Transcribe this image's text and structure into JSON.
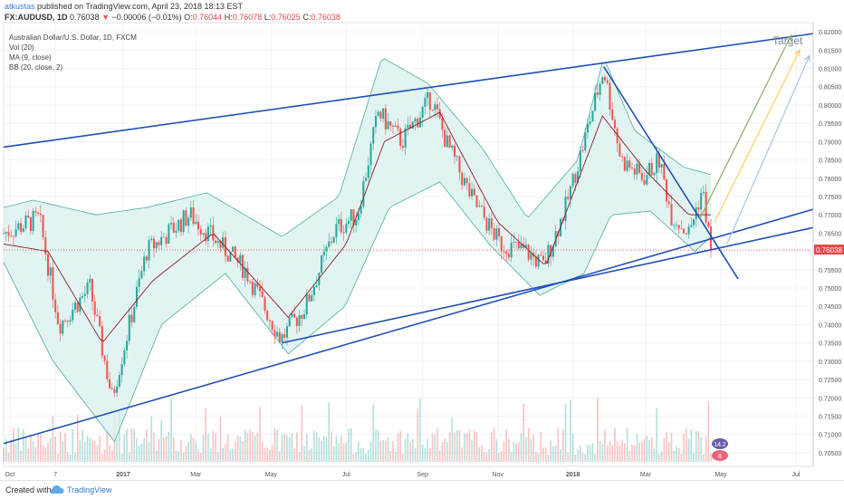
{
  "header": {
    "author": "atkustas",
    "published": "published on TradingView.com, April 23, 2018 18:13 EST",
    "symbol": "FX:AUDUSD, 1D",
    "last": "0.76038",
    "change_arrow": "▼",
    "change": "−0.00006 (−0.01%)",
    "open_label": "O:",
    "open": "0.76044",
    "high_label": "H:",
    "high": "0.76078",
    "low_label": "L:",
    "low": "0.76025",
    "close_label": "C:",
    "close": "0.76038"
  },
  "legend": {
    "title": "Australian Dollar/U.S. Dollar, 1D, FXCM",
    "vol": "Vol (20)",
    "ma": "MA (9, close)",
    "bb": "BB (20, close, 2)"
  },
  "colors": {
    "up": "#26a69a",
    "down": "#ef5350",
    "ma": "#8b1a2b",
    "bb": "#4caf9b",
    "bb_fill": "#d8f0ee",
    "trend": "#1f4fb4",
    "price_line": "#e5474a",
    "arrow_green": "#8bb05a",
    "arrow_yellow": "#f5d060",
    "arrow_blue": "#a9c4e0",
    "target_text": "#7b8a99"
  },
  "annotations": {
    "target": "Target"
  },
  "footer": {
    "created": "Created with",
    "brand": "TradingView",
    "brand_icon": "tradingview-cloud-icon"
  },
  "volume_labels": {
    "top": "14.2",
    "bottom": "8"
  },
  "chart_data": {
    "type": "candlestick",
    "title": "Australian Dollar/U.S. Dollar, 1D, FXCM",
    "x_ticks": [
      "Oct",
      "7",
      "2017",
      "Mar",
      "May",
      "Jul",
      "Sep",
      "Nov",
      "2018",
      "Mar",
      "May",
      "Jul"
    ],
    "y_ticks": [
      "0.82000",
      "0.81500",
      "0.81000",
      "0.80500",
      "0.80000",
      "0.79500",
      "0.79000",
      "0.78500",
      "0.78000",
      "0.77500",
      "0.77000",
      "0.76500",
      "0.76000",
      "0.75500",
      "0.75000",
      "0.74500",
      "0.74000",
      "0.73500",
      "0.73000",
      "0.72500",
      "0.72000",
      "0.71500",
      "0.71000",
      "0.70500"
    ],
    "ylim": [
      0.7025,
      0.8225
    ],
    "last_price": 0.76038,
    "last_price_label": "0.76038",
    "x_start": "2016-09-26",
    "x_end": "2018-07-15",
    "series": [
      {
        "name": "Price",
        "x": [
          "2016-09-26",
          "2016-10-25",
          "2016-11-10",
          "2016-12-05",
          "2016-12-23",
          "2017-01-20",
          "2017-02-24",
          "2017-03-20",
          "2017-04-10",
          "2017-05-09",
          "2017-05-29",
          "2017-06-22",
          "2017-07-10",
          "2017-07-27",
          "2017-08-15",
          "2017-09-08",
          "2017-09-20",
          "2017-10-10",
          "2017-11-03",
          "2017-11-24",
          "2017-12-08",
          "2017-12-26",
          "2018-01-10",
          "2018-01-26",
          "2018-02-09",
          "2018-02-27",
          "2018-03-12",
          "2018-03-22",
          "2018-04-05",
          "2018-04-16",
          "2018-04-23"
        ],
        "values": [
          0.765,
          0.769,
          0.74,
          0.75,
          0.72,
          0.76,
          0.77,
          0.762,
          0.755,
          0.736,
          0.745,
          0.766,
          0.77,
          0.798,
          0.79,
          0.802,
          0.79,
          0.775,
          0.762,
          0.76,
          0.756,
          0.772,
          0.79,
          0.81,
          0.785,
          0.78,
          0.785,
          0.77,
          0.765,
          0.777,
          0.7604
        ]
      },
      {
        "name": "MA (9, close)",
        "x": [
          "2016-09-26",
          "2016-11-01",
          "2016-12-15",
          "2017-01-25",
          "2017-03-15",
          "2017-05-15",
          "2017-07-01",
          "2017-08-01",
          "2017-09-15",
          "2017-11-01",
          "2017-12-10",
          "2018-01-25",
          "2018-03-01",
          "2018-04-05",
          "2018-04-23"
        ],
        "values": [
          0.762,
          0.76,
          0.735,
          0.752,
          0.765,
          0.742,
          0.762,
          0.79,
          0.798,
          0.768,
          0.756,
          0.797,
          0.782,
          0.77,
          0.77
        ]
      },
      {
        "name": "BB upper",
        "x": [
          "2016-09-26",
          "2016-10-20",
          "2016-12-10",
          "2017-01-20",
          "2017-03-10",
          "2017-05-10",
          "2017-06-25",
          "2017-07-30",
          "2017-09-05",
          "2017-10-20",
          "2017-11-25",
          "2018-01-05",
          "2018-01-26",
          "2018-02-20",
          "2018-04-01",
          "2018-04-23"
        ],
        "values": [
          0.772,
          0.774,
          0.77,
          0.772,
          0.776,
          0.764,
          0.775,
          0.813,
          0.806,
          0.788,
          0.769,
          0.785,
          0.813,
          0.793,
          0.783,
          0.781
        ]
      },
      {
        "name": "BB lower",
        "x": [
          "2016-09-26",
          "2016-11-05",
          "2016-12-25",
          "2017-02-01",
          "2017-03-25",
          "2017-05-15",
          "2017-06-30",
          "2017-08-05",
          "2017-09-15",
          "2017-10-25",
          "2017-12-05",
          "2018-01-10",
          "2018-02-01",
          "2018-03-05",
          "2018-04-10",
          "2018-04-23"
        ],
        "values": [
          0.757,
          0.73,
          0.708,
          0.74,
          0.754,
          0.732,
          0.745,
          0.772,
          0.779,
          0.762,
          0.748,
          0.754,
          0.77,
          0.771,
          0.76,
          0.764
        ]
      }
    ],
    "trendlines": [
      {
        "name": "upper-channel",
        "from": [
          "2016-09-26",
          0.7885
        ],
        "to": [
          "2018-07-15",
          0.8195
        ]
      },
      {
        "name": "lower-support",
        "from": [
          "2016-09-26",
          0.7075
        ],
        "to": [
          "2018-07-15",
          0.7715
        ]
      },
      {
        "name": "mid-support",
        "from": [
          "2017-05-10",
          0.735
        ],
        "to": [
          "2018-07-15",
          0.7665
        ]
      },
      {
        "name": "falling-resistance",
        "from": [
          "2018-01-26",
          0.8105
        ],
        "to": [
          "2018-05-15",
          0.7525
        ]
      }
    ],
    "volume": {
      "name": "Vol (20)",
      "ylim": [
        0,
        20
      ],
      "labels": [
        "14.2",
        "8"
      ]
    }
  }
}
